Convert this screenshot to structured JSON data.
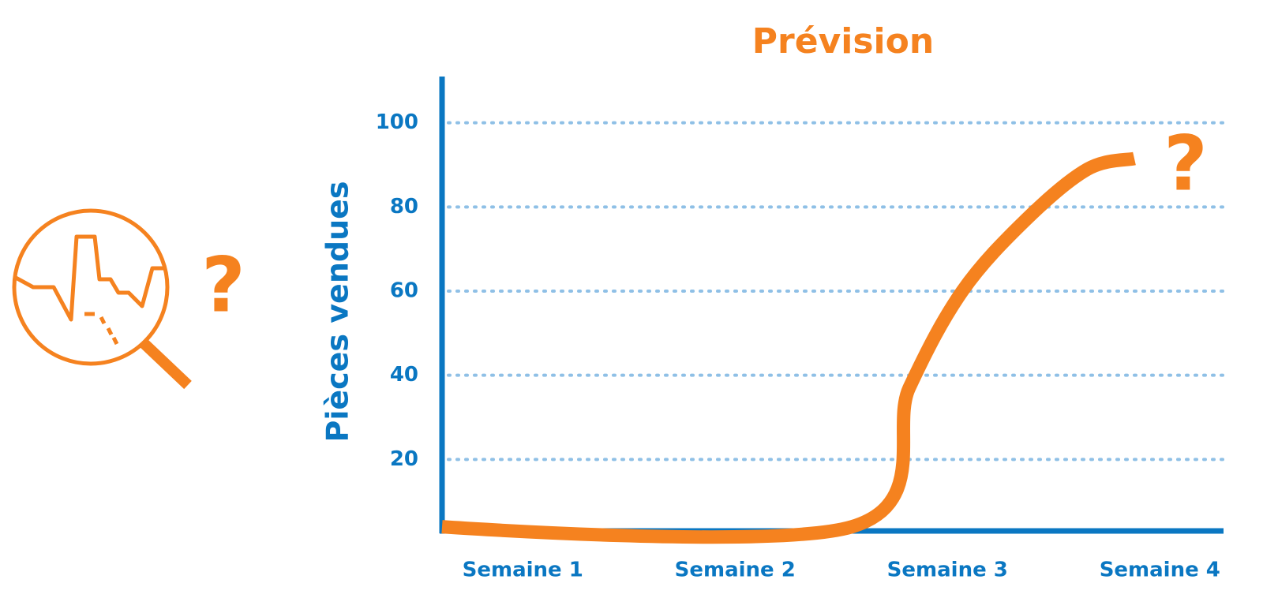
{
  "chart_data": {
    "type": "line",
    "title": "Prévision",
    "ylabel": "Pièces vendues",
    "x": [
      0.62,
      2.55,
      2.82,
      3.07,
      3.37,
      3.66,
      3.88
    ],
    "series": [
      {
        "name": "Prévision",
        "color": "#f5821f",
        "values": [
          4,
          4,
          37,
          60,
          77,
          89,
          91.5
        ]
      }
    ],
    "xlim": [
      0.62,
      4.3
    ],
    "xticks": [
      {
        "value": 1,
        "label": "Semaine 1"
      },
      {
        "value": 2,
        "label": "Semaine 2"
      },
      {
        "value": 3,
        "label": "Semaine 3"
      },
      {
        "value": 4,
        "label": "Semaine 4"
      }
    ],
    "ylim": [
      3,
      111
    ],
    "yticks": [
      20,
      40,
      60,
      80,
      100
    ],
    "grid": true,
    "axis_color": "#0a77c2",
    "grid_color": "#8fc0e6",
    "annotations": [
      "?",
      "?"
    ]
  }
}
